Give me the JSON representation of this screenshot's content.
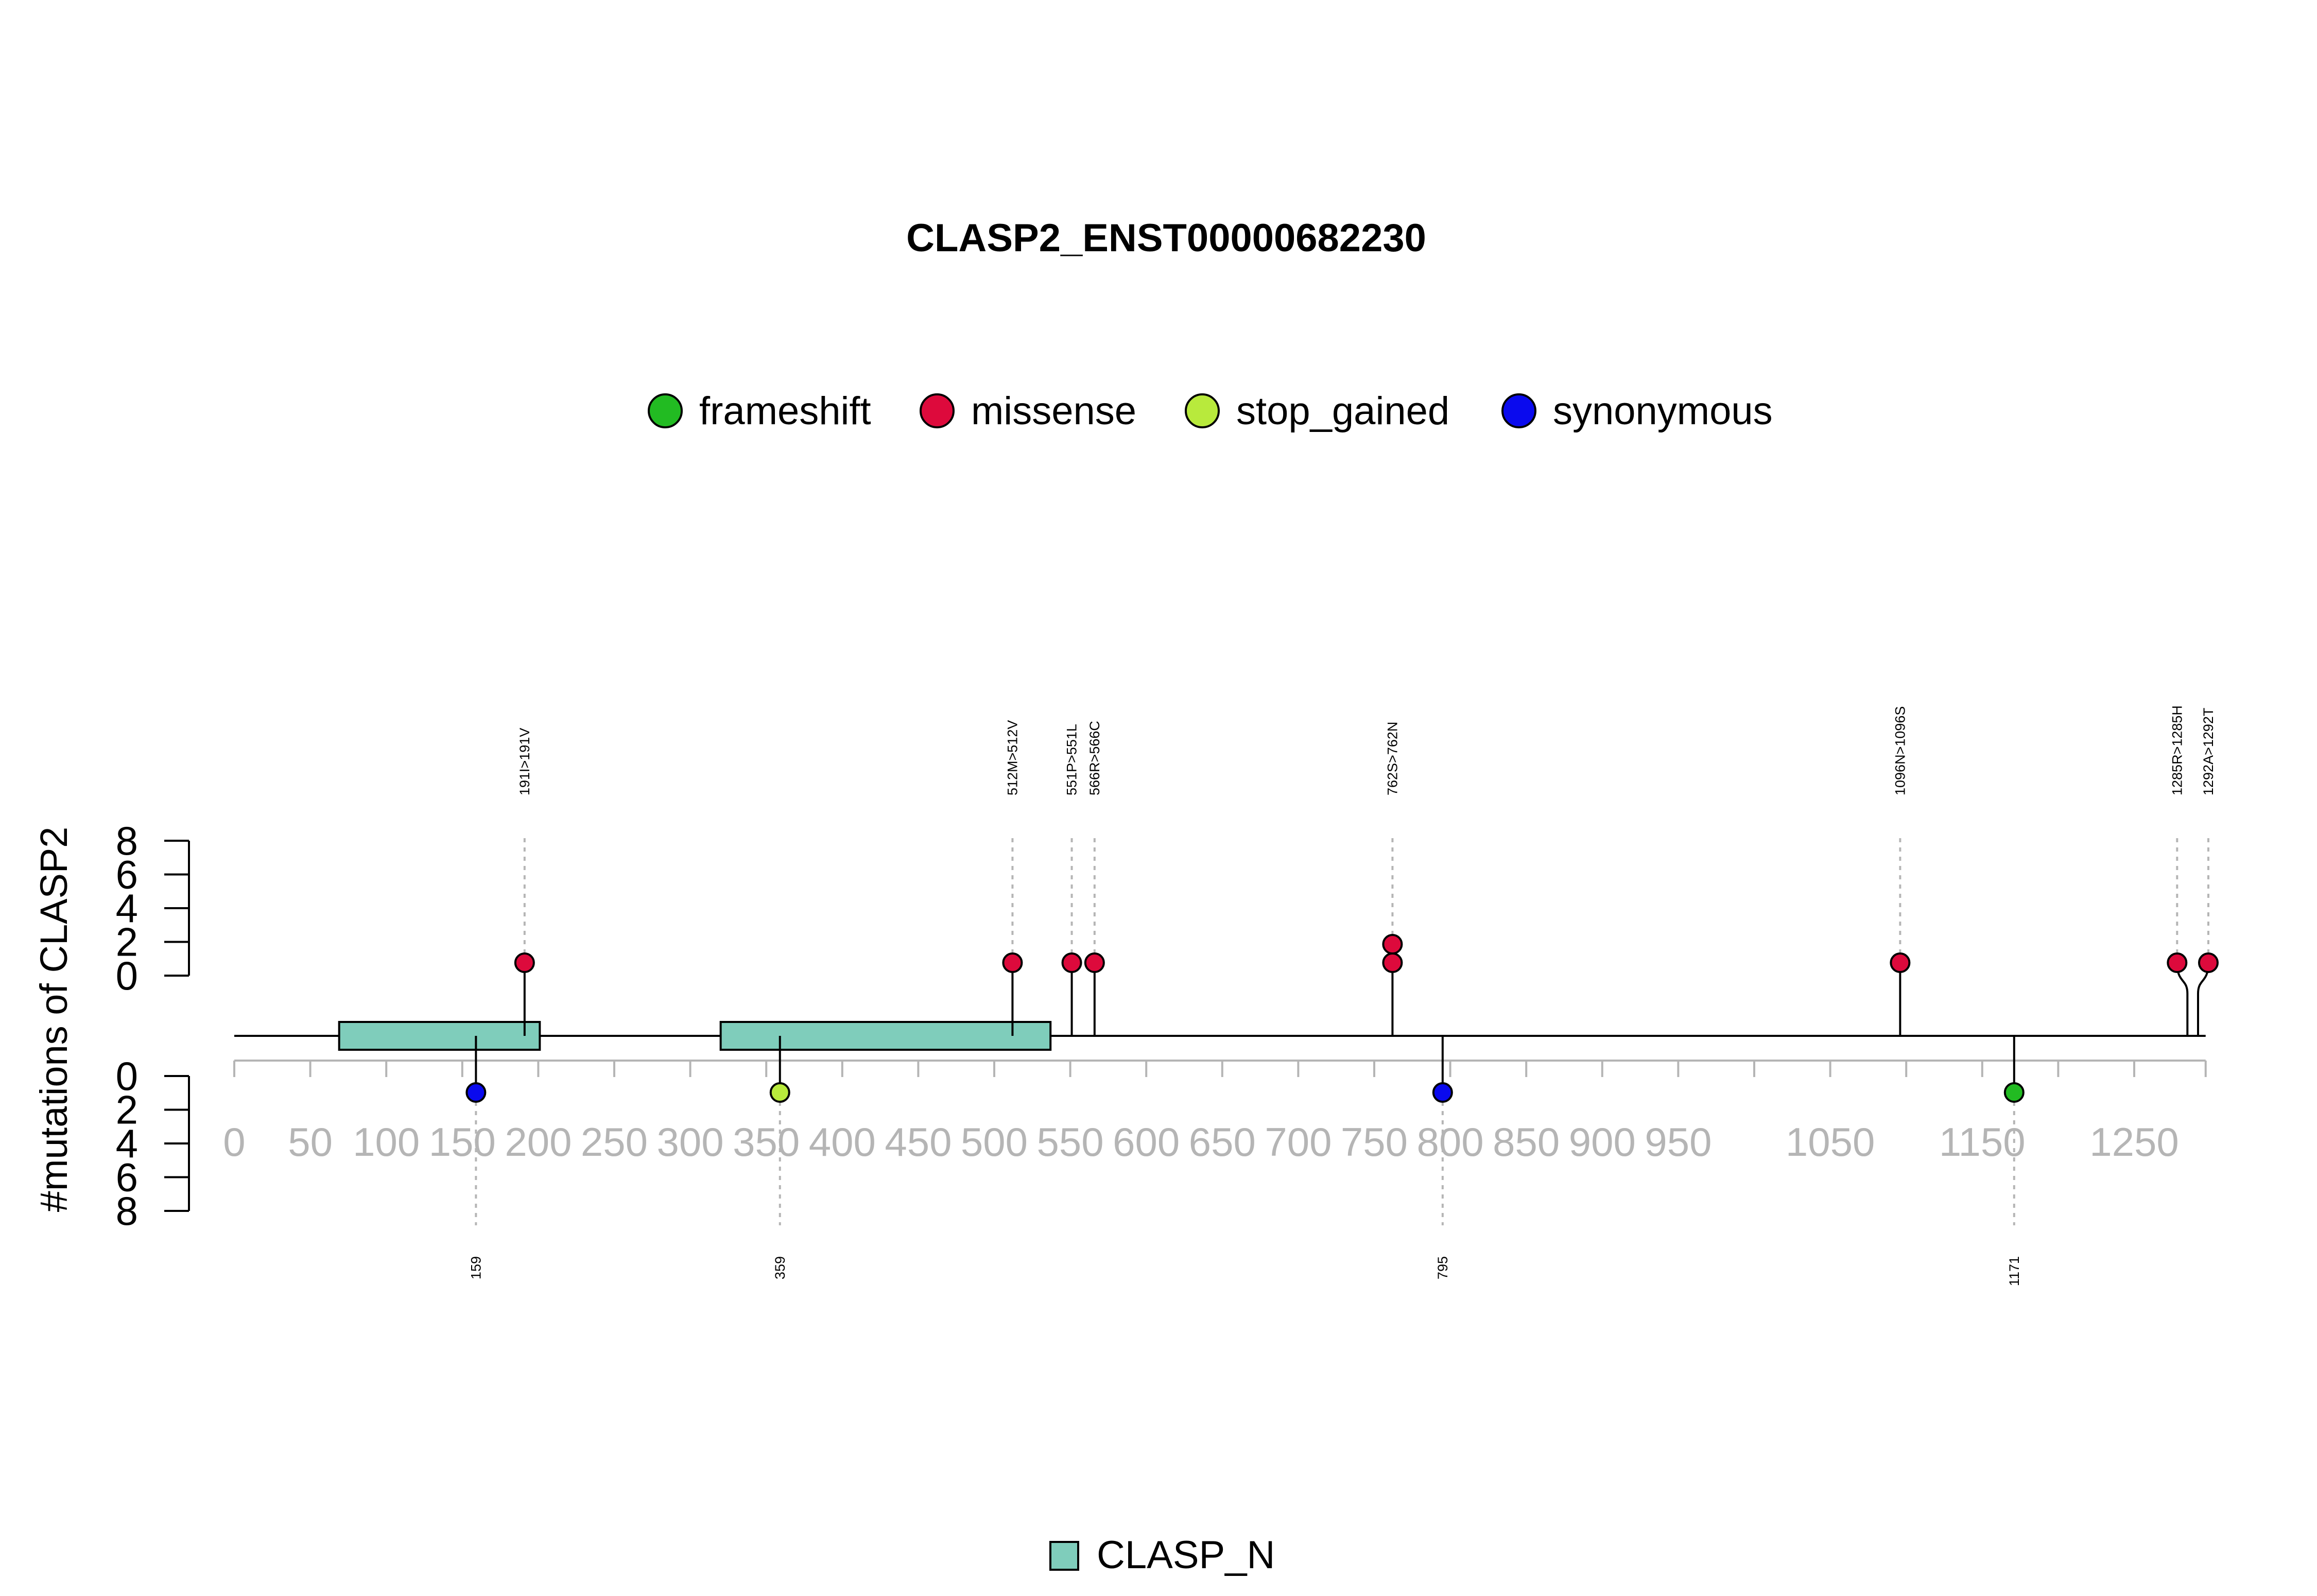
{
  "chart_data": {
    "type": "lollipop",
    "title": "CLASP2_ENST00000682230",
    "ylabel": "#mutations of CLASP2",
    "protein_length": 1297,
    "x_ticks": [
      0,
      50,
      100,
      150,
      200,
      250,
      300,
      350,
      400,
      450,
      500,
      550,
      600,
      650,
      700,
      750,
      800,
      850,
      900,
      950,
      1050,
      1150,
      1250
    ],
    "y_ticks": [
      "0",
      "2",
      "4",
      "6",
      "8"
    ],
    "ylim": [
      0,
      8
    ],
    "legend": [
      {
        "label": "frameshift",
        "color": "#22bb22"
      },
      {
        "label": "missense",
        "color": "#dd0a3c"
      },
      {
        "label": "stop_gained",
        "color": "#b8ea3c"
      },
      {
        "label": "synonymous",
        "color": "#0a0aee"
      }
    ],
    "domains": [
      {
        "name": "CLASP_N",
        "start": 69,
        "end": 201,
        "color": "#7fcdbb"
      },
      {
        "name": "CLASP_N",
        "start": 320,
        "end": 537,
        "color": "#7fcdbb"
      }
    ],
    "domain_legend": {
      "label": "CLASP_N",
      "color": "#7fcdbb"
    },
    "mutations_top": [
      {
        "position": 191,
        "label": "191I>191V",
        "type": "missense",
        "count": 1
      },
      {
        "position": 512,
        "label": "512M>512V",
        "type": "missense",
        "count": 1
      },
      {
        "position": 551,
        "label": "551P>551L",
        "type": "missense",
        "count": 1
      },
      {
        "position": 566,
        "label": "566R>566C",
        "type": "missense",
        "count": 1
      },
      {
        "position": 762,
        "label": "762S>762N",
        "type": "missense",
        "count": 2
      },
      {
        "position": 1096,
        "label": "1096N>1096S",
        "type": "missense",
        "count": 1
      },
      {
        "position": 1285,
        "label": "1285R>1285H",
        "type": "missense",
        "count": 1
      },
      {
        "position": 1292,
        "label": "1292A>1292T",
        "type": "missense",
        "count": 1
      }
    ],
    "mutations_bottom": [
      {
        "position": 159,
        "label": "159",
        "type": "synonymous",
        "count": 1
      },
      {
        "position": 359,
        "label": "359",
        "type": "stop_gained",
        "count": 1
      },
      {
        "position": 795,
        "label": "795",
        "type": "synonymous",
        "count": 1
      },
      {
        "position": 1171,
        "label": "1171",
        "type": "frameshift",
        "count": 1
      }
    ]
  }
}
